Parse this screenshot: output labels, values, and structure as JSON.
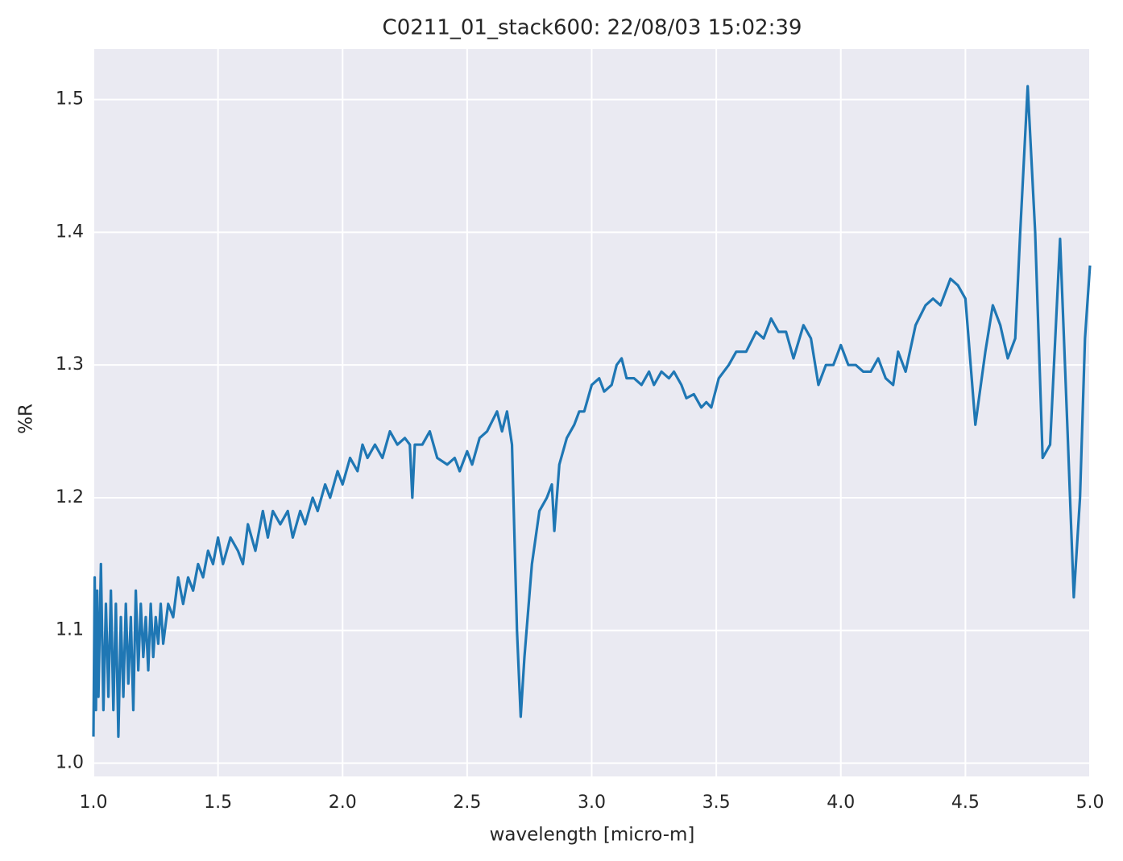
{
  "chart_data": {
    "type": "line",
    "title": "C0211_01_stack600:  22/08/03 15:02:39",
    "x_label": "wavelength [micro-m]",
    "y_label": "%R",
    "xlim": [
      1.0,
      5.0
    ],
    "ylim": [
      0.99,
      1.538
    ],
    "xticks": [
      {
        "value": 1.0,
        "label": "1.0"
      },
      {
        "value": 1.5,
        "label": "1.5"
      },
      {
        "value": 2.0,
        "label": "2.0"
      },
      {
        "value": 2.5,
        "label": "2.5"
      },
      {
        "value": 3.0,
        "label": "3.0"
      },
      {
        "value": 3.5,
        "label": "3.5"
      },
      {
        "value": 4.0,
        "label": "4.0"
      },
      {
        "value": 4.5,
        "label": "4.5"
      },
      {
        "value": 5.0,
        "label": "5.0"
      }
    ],
    "yticks": [
      {
        "value": 1.0,
        "label": "1.0"
      },
      {
        "value": 1.1,
        "label": "1.1"
      },
      {
        "value": 1.2,
        "label": "1.2"
      },
      {
        "value": 1.3,
        "label": "1.3"
      },
      {
        "value": 1.4,
        "label": "1.4"
      },
      {
        "value": 1.5,
        "label": "1.5"
      }
    ],
    "grid": true,
    "background": "#eaeaf2",
    "series": [
      {
        "color": "#1f77b4",
        "x": [
          1.0,
          1.005,
          1.01,
          1.015,
          1.02,
          1.03,
          1.04,
          1.05,
          1.06,
          1.07,
          1.08,
          1.09,
          1.1,
          1.11,
          1.12,
          1.13,
          1.14,
          1.15,
          1.16,
          1.17,
          1.18,
          1.19,
          1.2,
          1.21,
          1.22,
          1.23,
          1.24,
          1.25,
          1.26,
          1.27,
          1.28,
          1.3,
          1.32,
          1.34,
          1.36,
          1.38,
          1.4,
          1.42,
          1.44,
          1.46,
          1.48,
          1.5,
          1.52,
          1.55,
          1.58,
          1.6,
          1.62,
          1.65,
          1.68,
          1.7,
          1.72,
          1.75,
          1.78,
          1.8,
          1.83,
          1.85,
          1.88,
          1.9,
          1.93,
          1.95,
          1.98,
          2.0,
          2.03,
          2.06,
          2.08,
          2.1,
          2.13,
          2.16,
          2.19,
          2.22,
          2.25,
          2.27,
          2.28,
          2.29,
          2.32,
          2.35,
          2.38,
          2.42,
          2.45,
          2.47,
          2.5,
          2.52,
          2.55,
          2.58,
          2.62,
          2.64,
          2.66,
          2.68,
          2.7,
          2.715,
          2.73,
          2.76,
          2.79,
          2.82,
          2.84,
          2.85,
          2.87,
          2.9,
          2.93,
          2.95,
          2.97,
          3.0,
          3.03,
          3.05,
          3.08,
          3.1,
          3.12,
          3.14,
          3.17,
          3.2,
          3.23,
          3.25,
          3.28,
          3.31,
          3.33,
          3.36,
          3.38,
          3.41,
          3.44,
          3.46,
          3.48,
          3.51,
          3.55,
          3.58,
          3.62,
          3.66,
          3.69,
          3.72,
          3.75,
          3.78,
          3.81,
          3.85,
          3.88,
          3.91,
          3.94,
          3.97,
          4.0,
          4.03,
          4.06,
          4.09,
          4.12,
          4.15,
          4.18,
          4.21,
          4.23,
          4.26,
          4.3,
          4.34,
          4.37,
          4.4,
          4.44,
          4.47,
          4.5,
          4.54,
          4.58,
          4.61,
          4.64,
          4.67,
          4.7,
          4.72,
          4.75,
          4.78,
          4.81,
          4.84,
          4.88,
          4.91,
          4.935,
          4.96,
          4.98,
          5.0
        ],
        "values": [
          1.02,
          1.14,
          1.04,
          1.13,
          1.05,
          1.15,
          1.04,
          1.12,
          1.05,
          1.13,
          1.04,
          1.12,
          1.02,
          1.11,
          1.05,
          1.12,
          1.06,
          1.11,
          1.04,
          1.13,
          1.07,
          1.12,
          1.08,
          1.11,
          1.07,
          1.12,
          1.08,
          1.11,
          1.09,
          1.12,
          1.09,
          1.12,
          1.11,
          1.14,
          1.12,
          1.14,
          1.13,
          1.15,
          1.14,
          1.16,
          1.15,
          1.17,
          1.15,
          1.17,
          1.16,
          1.15,
          1.18,
          1.16,
          1.19,
          1.17,
          1.19,
          1.18,
          1.19,
          1.17,
          1.19,
          1.18,
          1.2,
          1.19,
          1.21,
          1.2,
          1.22,
          1.21,
          1.23,
          1.22,
          1.24,
          1.23,
          1.24,
          1.23,
          1.25,
          1.24,
          1.245,
          1.24,
          1.2,
          1.24,
          1.24,
          1.25,
          1.23,
          1.225,
          1.23,
          1.22,
          1.235,
          1.225,
          1.245,
          1.25,
          1.265,
          1.25,
          1.265,
          1.24,
          1.1,
          1.035,
          1.08,
          1.15,
          1.19,
          1.2,
          1.21,
          1.175,
          1.225,
          1.245,
          1.255,
          1.265,
          1.265,
          1.285,
          1.29,
          1.28,
          1.285,
          1.3,
          1.305,
          1.29,
          1.29,
          1.285,
          1.295,
          1.285,
          1.295,
          1.29,
          1.295,
          1.285,
          1.275,
          1.278,
          1.268,
          1.272,
          1.268,
          1.29,
          1.3,
          1.31,
          1.31,
          1.325,
          1.32,
          1.335,
          1.325,
          1.325,
          1.305,
          1.33,
          1.32,
          1.285,
          1.3,
          1.3,
          1.315,
          1.3,
          1.3,
          1.295,
          1.295,
          1.305,
          1.29,
          1.285,
          1.31,
          1.295,
          1.33,
          1.345,
          1.35,
          1.345,
          1.365,
          1.36,
          1.35,
          1.255,
          1.31,
          1.345,
          1.33,
          1.305,
          1.32,
          1.4,
          1.51,
          1.4,
          1.23,
          1.24,
          1.395,
          1.25,
          1.125,
          1.2,
          1.32,
          1.375
        ]
      }
    ]
  }
}
